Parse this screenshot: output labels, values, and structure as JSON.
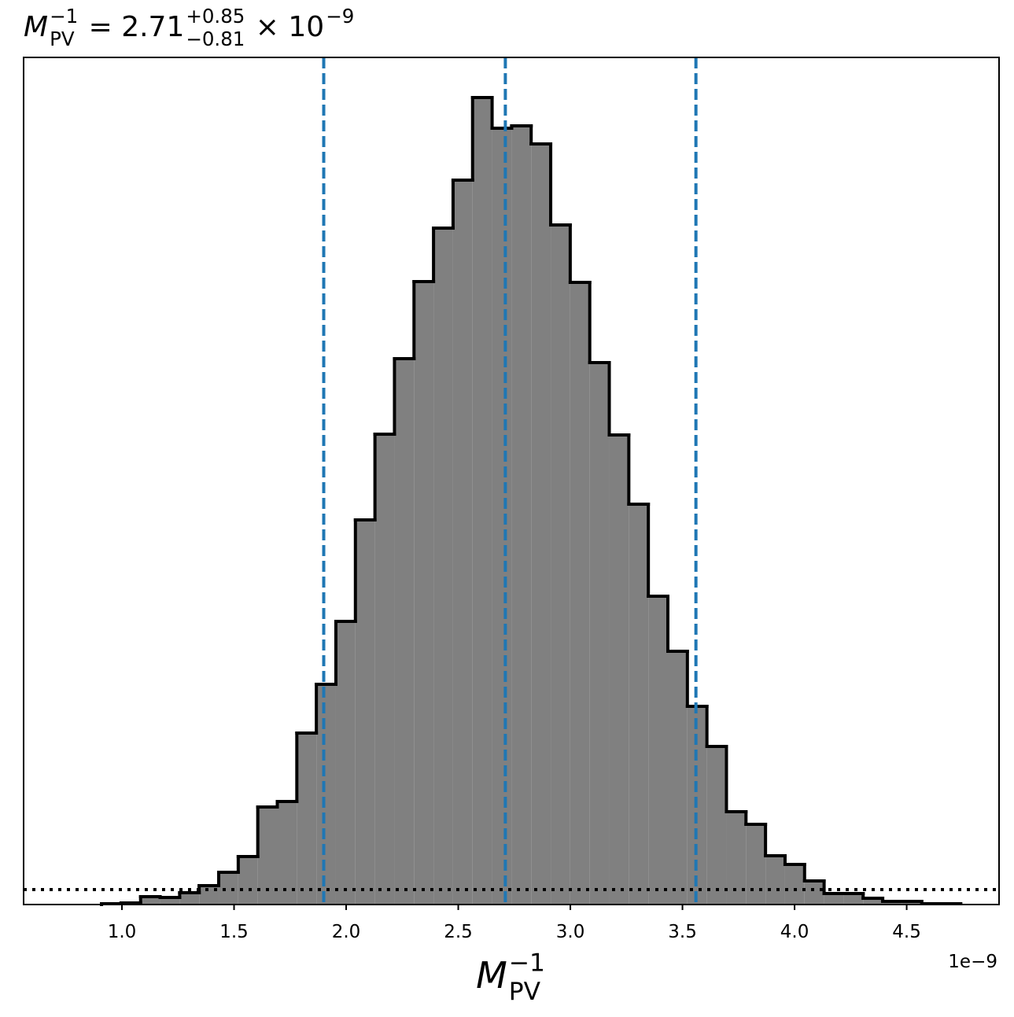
{
  "chart_data": {
    "type": "histogram",
    "title": {
      "symbol": "M",
      "symbol_sup": "−1",
      "symbol_sub": "PV",
      "value": " = 2.71",
      "upper": "+0.85",
      "lower": "−0.81",
      "times": " × 10",
      "exponent": "−9"
    },
    "xlabel": {
      "symbol": "M",
      "sup": "−1",
      "sub": "PV"
    },
    "x_offset_label": "1e−9",
    "bins": [
      0.909,
      0.9961,
      1.0832,
      1.1703,
      1.2574,
      1.3445,
      1.4316,
      1.5187,
      1.6058,
      1.6929,
      1.78,
      1.8671,
      1.9542,
      2.0413,
      2.1284,
      2.2155,
      2.3026,
      2.3897,
      2.4768,
      2.5639,
      2.651,
      2.7381,
      2.8252,
      2.9123,
      2.9994,
      3.0865,
      3.1736,
      3.2607,
      3.3478,
      3.4349,
      3.522,
      3.6091,
      3.6962,
      3.7833,
      3.8704,
      3.9575,
      4.0446,
      4.1317,
      4.2188,
      4.3059,
      4.393,
      4.4801,
      4.5672,
      4.6543,
      4.7414
    ],
    "counts": [
      1,
      2,
      10,
      9,
      15,
      24,
      41,
      61,
      124,
      131,
      218,
      280,
      360,
      489,
      598,
      694,
      792,
      860,
      921,
      1026,
      987,
      990,
      967,
      864,
      791,
      689,
      597,
      509,
      392,
      322,
      252,
      201,
      118,
      102,
      62,
      51,
      30,
      14,
      14,
      8,
      4,
      4,
      1,
      1
    ],
    "color": "#808080",
    "edge_color": "#000000",
    "vlines": [
      1.9,
      2.71,
      3.56
    ],
    "vline_color": "#1f77b4",
    "hline": 19,
    "xlim": [
      0.5614,
      4.912
    ],
    "ylim": [
      0,
      1077
    ],
    "xticks": [
      {
        "value": 1,
        "label": "1.0"
      },
      {
        "value": 1.5,
        "label": "1.5"
      },
      {
        "value": 2,
        "label": "2.0"
      },
      {
        "value": 2.5,
        "label": "2.5"
      },
      {
        "value": 3,
        "label": "3.0"
      },
      {
        "value": 3.5,
        "label": "3.5"
      },
      {
        "value": 4,
        "label": "4.0"
      },
      {
        "value": 4.5,
        "label": "4.5"
      }
    ]
  }
}
